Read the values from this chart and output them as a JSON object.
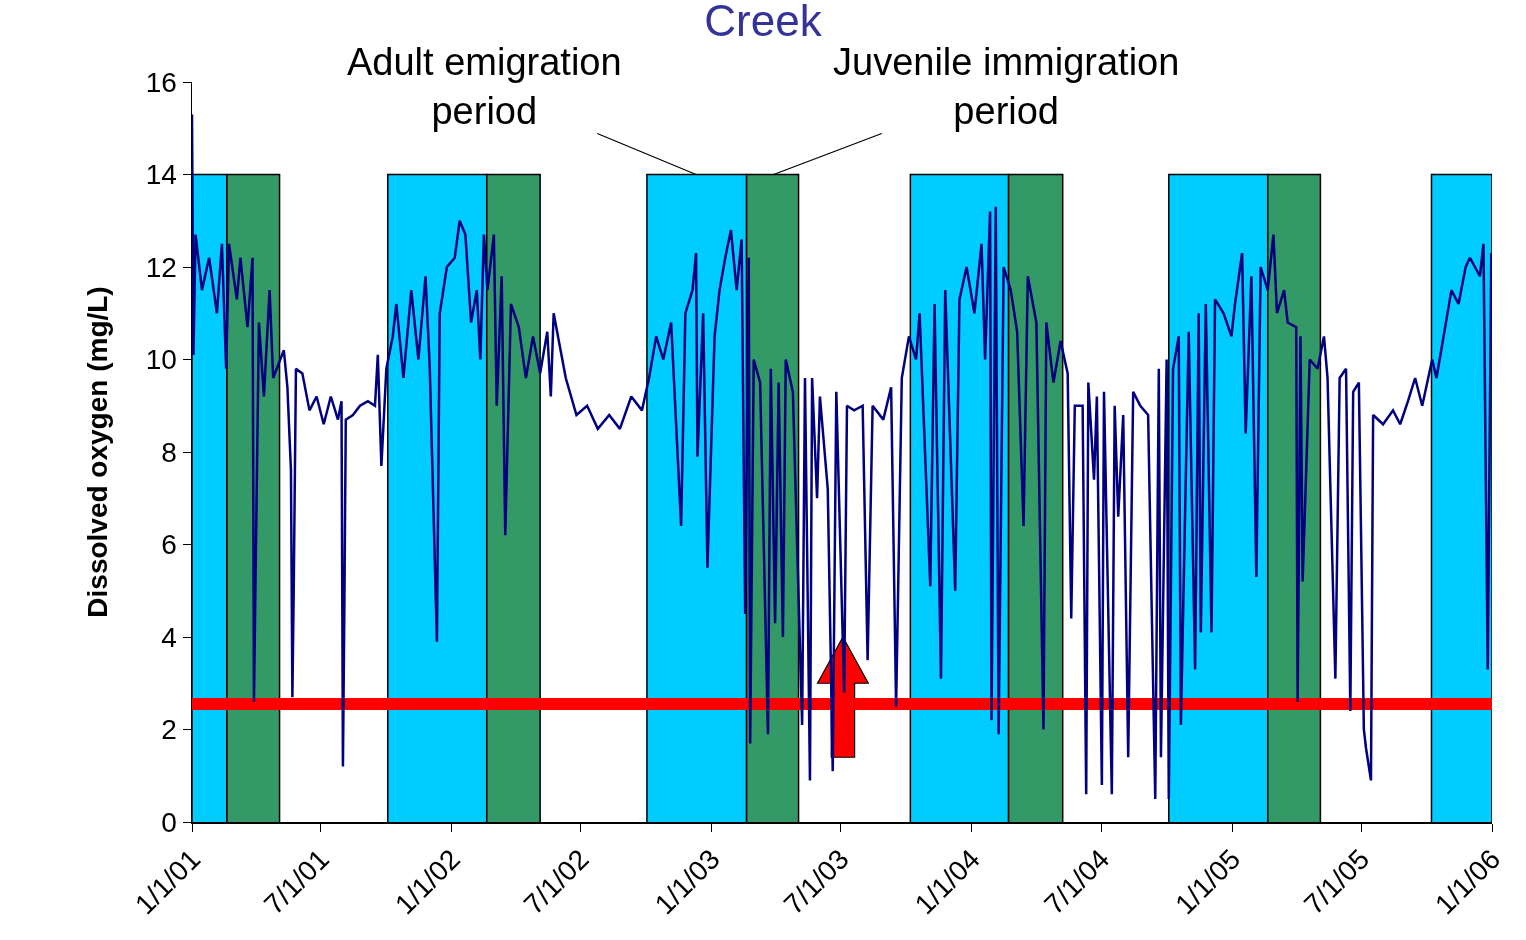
{
  "chart_data": {
    "type": "line",
    "title": "Creek",
    "ylabel": "Dissolved oxygen (mg/L)",
    "xlim": [
      "2001-01-01",
      "2006-01-01"
    ],
    "xticks": [
      {
        "value": "2001-01-01",
        "label": "1/1/01"
      },
      {
        "value": "2001-07-01",
        "label": "7/1/01"
      },
      {
        "value": "2002-01-01",
        "label": "1/1/02"
      },
      {
        "value": "2002-07-01",
        "label": "7/1/02"
      },
      {
        "value": "2003-01-01",
        "label": "1/1/03"
      },
      {
        "value": "2003-07-01",
        "label": "7/1/03"
      },
      {
        "value": "2004-01-01",
        "label": "1/1/04"
      },
      {
        "value": "2004-07-01",
        "label": "7/1/04"
      },
      {
        "value": "2005-01-01",
        "label": "1/1/05"
      },
      {
        "value": "2005-07-01",
        "label": "7/1/05"
      },
      {
        "value": "2006-01-01",
        "label": "1/1/06"
      }
    ],
    "ylim": [
      0,
      16
    ],
    "yticks": [
      0,
      2,
      4,
      6,
      8,
      10,
      12,
      14,
      16
    ],
    "annotations": [
      {
        "text": "Adult emigration\nperiod",
        "x": "2002-12-10",
        "y": 14
      },
      {
        "text": "Juvenile immigration\nperiod",
        "x": "2003-03-29",
        "y": 14
      }
    ],
    "ref_lines": [
      {
        "axis": "y",
        "value": 2.55,
        "color": "#ff0000"
      }
    ],
    "series": [
      {
        "type": "area",
        "color": "#00ccff",
        "x": [
          "2001-01-01",
          "2001-01-01",
          "2001-02-19",
          "2001-02-19",
          "2001-02-20",
          "2001-10-03",
          "2001-10-03",
          "2002-02-19",
          "2002-02-19",
          "2002-02-20",
          "2002-10-02",
          "2002-10-02",
          "2003-02-19",
          "2003-02-19",
          "2003-02-20",
          "2003-10-07",
          "2003-10-07",
          "2004-02-22",
          "2004-02-22",
          "2004-02-23",
          "2004-10-04",
          "2004-10-04",
          "2005-02-20",
          "2005-02-20",
          "2005-02-21",
          "2005-10-08",
          "2005-10-08",
          "2006-01-01",
          "2006-01-01"
        ],
        "values": [
          0,
          14,
          14,
          0,
          null,
          0,
          14,
          14,
          0,
          null,
          0,
          14,
          14,
          0,
          null,
          0,
          14,
          14,
          0,
          null,
          0,
          14,
          14,
          0,
          null,
          0,
          14,
          14,
          0
        ]
      },
      {
        "type": "area",
        "color": "#339966",
        "x": [
          "2001-02-19",
          "2001-02-19",
          "2001-05-04",
          "2001-05-04",
          "2001-05-05",
          "2002-02-19",
          "2002-02-19",
          "2002-05-05",
          "2002-05-05",
          "2002-05-06",
          "2003-02-19",
          "2003-02-19",
          "2003-05-03",
          "2003-05-03",
          "2003-05-04",
          "2004-02-22",
          "2004-02-22",
          "2004-05-08",
          "2004-05-08",
          "2004-05-09",
          "2005-02-20",
          "2005-02-20",
          "2005-05-05",
          "2005-05-05"
        ],
        "values": [
          0,
          14,
          14,
          0,
          null,
          0,
          14,
          14,
          0,
          null,
          0,
          14,
          14,
          0,
          null,
          0,
          14,
          14,
          0,
          null,
          0,
          14,
          14,
          0
        ]
      },
      {
        "type": "line",
        "color": "#000080",
        "x": [
          "2001-01-01",
          "2001-01-03",
          "2001-01-06",
          "2001-01-15",
          "2001-01-25",
          "2001-02-05",
          "2001-02-12",
          "2001-02-18",
          "2001-02-22",
          "2001-03-05",
          "2001-03-10",
          "2001-03-20",
          "2001-03-27",
          "2001-03-29",
          "2001-04-05",
          "2001-04-12",
          "2001-04-20",
          "2001-04-25",
          "2001-05-10",
          "2001-05-15",
          "2001-05-20",
          "2001-05-22",
          "2001-05-24",
          "2001-05-27",
          "2001-06-05",
          "2001-06-15",
          "2001-06-25",
          "2001-07-05",
          "2001-07-15",
          "2001-07-25",
          "2001-07-30",
          "2001-08-01",
          "2001-08-03",
          "2001-08-05",
          "2001-08-15",
          "2001-08-25",
          "2001-09-05",
          "2001-09-15",
          "2001-09-19",
          "2001-09-24",
          "2001-10-01",
          "2001-10-10",
          "2001-10-15",
          "2001-10-25",
          "2001-11-05",
          "2001-11-15",
          "2001-11-25",
          "2001-12-01",
          "2001-12-11",
          "2001-12-15",
          "2001-12-25",
          "2002-01-05",
          "2002-01-12",
          "2002-01-20",
          "2002-01-28",
          "2002-02-05",
          "2002-02-10",
          "2002-02-15",
          "2002-02-20",
          "2002-03-01",
          "2002-03-05",
          "2002-03-12",
          "2002-03-17",
          "2002-03-25",
          "2002-04-05",
          "2002-04-15",
          "2002-04-25",
          "2002-05-05",
          "2002-05-15",
          "2002-05-20",
          "2002-05-24",
          "2002-06-10",
          "2002-06-25",
          "2002-07-10",
          "2002-07-25",
          "2002-08-10",
          "2002-08-25",
          "2002-09-10",
          "2002-09-25",
          "2002-10-05",
          "2002-10-15",
          "2002-10-25",
          "2002-11-05",
          "2002-11-19",
          "2002-11-25",
          "2002-12-05",
          "2002-12-10",
          "2002-12-12",
          "2002-12-20",
          "2002-12-26",
          "2003-01-05",
          "2003-01-12",
          "2003-01-20",
          "2003-01-28",
          "2003-02-05",
          "2003-02-12",
          "2003-02-17",
          "2003-02-22",
          "2003-02-24",
          "2003-03-01",
          "2003-03-10",
          "2003-03-21",
          "2003-03-25",
          "2003-03-31",
          "2003-04-05",
          "2003-04-11",
          "2003-04-15",
          "2003-04-25",
          "2003-05-08",
          "2003-05-12",
          "2003-05-19",
          "2003-05-22",
          "2003-05-29",
          "2003-06-02",
          "2003-06-13",
          "2003-06-20",
          "2003-06-25",
          "2003-07-06",
          "2003-07-10",
          "2003-07-20",
          "2003-08-01",
          "2003-08-08",
          "2003-08-15",
          "2003-08-30",
          "2003-09-10",
          "2003-09-17",
          "2003-09-25",
          "2003-10-05",
          "2003-10-15",
          "2003-10-20",
          "2003-11-04",
          "2003-11-10",
          "2003-11-19",
          "2003-11-25",
          "2003-12-09",
          "2003-12-15",
          "2003-12-25",
          "2004-01-05",
          "2004-01-15",
          "2004-01-20",
          "2004-01-27",
          "2004-01-29",
          "2004-02-04",
          "2004-02-08",
          "2004-02-15",
          "2004-02-25",
          "2004-03-05",
          "2004-03-14",
          "2004-03-20",
          "2004-04-01",
          "2004-04-11",
          "2004-04-15",
          "2004-04-25",
          "2004-05-05",
          "2004-05-15",
          "2004-05-20",
          "2004-05-25",
          "2004-06-05",
          "2004-06-10",
          "2004-06-13",
          "2004-06-21",
          "2004-06-25",
          "2004-07-02",
          "2004-07-05",
          "2004-07-16",
          "2004-07-20",
          "2004-07-25",
          "2004-08-01",
          "2004-08-08",
          "2004-08-15",
          "2004-08-25",
          "2004-09-05",
          "2004-09-15",
          "2004-09-20",
          "2004-09-23",
          "2004-10-01",
          "2004-10-04",
          "2004-10-10",
          "2004-10-18",
          "2004-10-21",
          "2004-11-01",
          "2004-11-10",
          "2004-11-15",
          "2004-11-18",
          "2004-11-25",
          "2004-12-03",
          "2004-12-08",
          "2004-12-20",
          "2004-12-31",
          "2005-01-05",
          "2005-01-15",
          "2005-01-20",
          "2005-01-28",
          "2005-02-04",
          "2005-02-10",
          "2005-02-20",
          "2005-02-28",
          "2005-03-05",
          "2005-03-15",
          "2005-03-20",
          "2005-04-01",
          "2005-04-03",
          "2005-04-07",
          "2005-04-10",
          "2005-04-20",
          "2005-05-01",
          "2005-05-10",
          "2005-05-15",
          "2005-05-26",
          "2005-06-01",
          "2005-06-10",
          "2005-06-16",
          "2005-06-20",
          "2005-06-28",
          "2005-07-05",
          "2005-07-08",
          "2005-07-15",
          "2005-07-18",
          "2005-08-01",
          "2005-08-15",
          "2005-08-25",
          "2005-09-05",
          "2005-09-15",
          "2005-09-25",
          "2005-10-09",
          "2005-10-15",
          "2005-10-25",
          "2005-11-05",
          "2005-11-15",
          "2005-11-25",
          "2005-12-01",
          "2005-12-15",
          "2005-12-20",
          "2005-12-26",
          "2005-12-31"
        ],
        "values": [
          15.3,
          10.1,
          12.7,
          11.5,
          12.2,
          11.0,
          12.5,
          9.8,
          12.5,
          11.3,
          12.2,
          10.7,
          12.2,
          2.6,
          10.8,
          9.2,
          11.5,
          9.6,
          10.2,
          9.4,
          7.6,
          2.7,
          5.2,
          9.8,
          9.7,
          8.9,
          9.2,
          8.6,
          9.2,
          8.7,
          9.1,
          1.2,
          4.6,
          8.7,
          8.8,
          9.0,
          9.1,
          9.0,
          10.1,
          7.7,
          9.8,
          10.5,
          11.2,
          9.6,
          11.5,
          10.0,
          11.8,
          9.8,
          3.9,
          11.0,
          12.0,
          12.2,
          13.0,
          12.7,
          10.8,
          11.5,
          10.0,
          12.7,
          11.5,
          12.7,
          9.0,
          11.8,
          6.2,
          11.2,
          10.7,
          9.6,
          10.5,
          9.7,
          10.6,
          9.2,
          11.0,
          9.6,
          8.8,
          9.0,
          8.5,
          8.8,
          8.5,
          9.2,
          8.9,
          9.6,
          10.5,
          10.0,
          10.8,
          6.4,
          11.0,
          11.5,
          12.3,
          7.9,
          11.0,
          5.5,
          10.5,
          11.5,
          12.2,
          12.8,
          11.5,
          12.6,
          4.5,
          12.2,
          1.7,
          10.0,
          9.5,
          1.9,
          9.8,
          4.3,
          9.5,
          4.0,
          10.0,
          9.3,
          2.1,
          9.6,
          0.9,
          9.6,
          7.0,
          9.2,
          7.2,
          1.1,
          9.3,
          2.8,
          9.0,
          8.9,
          9.0,
          3.5,
          9.0,
          8.7,
          9.4,
          2.5,
          9.6,
          10.5,
          10.0,
          11.0,
          5.1,
          11.2,
          3.1,
          11.5,
          5.0,
          11.3,
          12.0,
          11.0,
          12.5,
          10.0,
          13.2,
          2.2,
          13.3,
          1.9,
          12.0,
          11.5,
          10.6,
          6.4,
          11.8,
          10.8,
          2.0,
          10.8,
          9.5,
          10.4,
          9.7,
          4.4,
          9.0,
          9.0,
          0.6,
          9.5,
          7.4,
          9.2,
          0.8,
          9.3,
          0.6,
          9.0,
          6.6,
          8.8,
          1.4,
          9.3,
          9.0,
          8.8,
          0.5,
          9.8,
          1.4,
          10.0,
          0.5,
          9.8,
          10.5,
          2.1,
          10.6,
          3.3,
          11.0,
          4.1,
          11.2,
          4.1,
          11.3,
          11.0,
          10.5,
          11.2,
          12.3,
          8.4,
          11.8,
          5.3,
          12.0,
          11.5,
          12.7,
          11.0,
          11.5,
          10.8,
          10.7,
          2.6,
          10.5,
          5.2,
          10.0,
          9.8,
          10.5,
          9.6,
          3.1,
          9.6,
          9.8,
          2.4,
          9.3,
          9.5,
          2.0,
          1.6,
          0.9,
          8.8,
          8.6,
          8.9,
          8.6,
          9.1,
          9.6,
          9.0,
          10.0,
          9.6,
          10.5,
          11.5,
          11.2,
          12.0,
          12.2,
          11.8,
          12.5,
          3.3,
          12.3
        ]
      }
    ]
  }
}
